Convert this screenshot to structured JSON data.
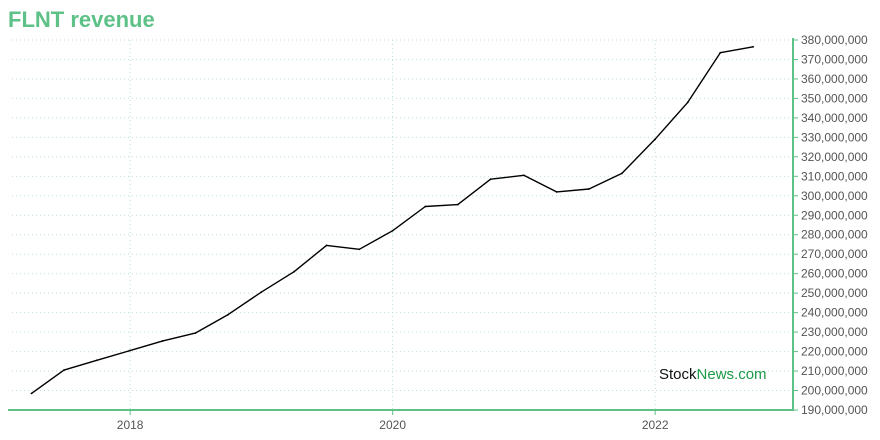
{
  "title": "FLNT revenue",
  "colors": {
    "accent": "#5ec187",
    "line": "#000000",
    "grid": "#b9e3c9",
    "brand_dark": "#111111",
    "brand_green": "#1e9a4a"
  },
  "watermark": {
    "part1": "Stock",
    "part2": "News",
    "part3": ".com"
  },
  "chart_data": {
    "type": "line",
    "title": "FLNT revenue",
    "xlabel": "",
    "ylabel": "",
    "x_ticks": [
      {
        "label": "2018",
        "value": 2018.0
      },
      {
        "label": "2020",
        "value": 2020.0
      },
      {
        "label": "2022",
        "value": 2022.0
      }
    ],
    "ylim": [
      190000000,
      380000000
    ],
    "xlim": [
      2017.1,
      2023.05
    ],
    "y_ticks": [
      "190,000,000",
      "200,000,000",
      "210,000,000",
      "220,000,000",
      "230,000,000",
      "240,000,000",
      "250,000,000",
      "260,000,000",
      "270,000,000",
      "280,000,000",
      "290,000,000",
      "300,000,000",
      "310,000,000",
      "320,000,000",
      "330,000,000",
      "340,000,000",
      "350,000,000",
      "360,000,000",
      "370,000,000",
      "380,000,000"
    ],
    "y_tick_values": [
      190000000,
      200000000,
      210000000,
      220000000,
      230000000,
      240000000,
      250000000,
      260000000,
      270000000,
      280000000,
      290000000,
      300000000,
      310000000,
      320000000,
      330000000,
      340000000,
      350000000,
      360000000,
      370000000,
      380000000
    ],
    "grid": true,
    "series": [
      {
        "x": [
          "2017-03-31",
          "2017-06-30",
          "2017-09-30",
          "2017-12-31",
          "2018-03-31",
          "2018-06-30",
          "2018-09-30",
          "2018-12-31",
          "2019-03-31",
          "2019-06-30",
          "2019-09-30",
          "2019-12-31",
          "2020-03-31",
          "2020-06-30",
          "2020-09-30",
          "2020-12-31",
          "2021-03-31",
          "2021-06-30",
          "2021-09-30",
          "2021-12-31",
          "2022-03-31",
          "2022-06-30",
          "2022-09-30"
        ],
        "values": [
          198500000,
          210500000,
          215500000,
          220500000,
          225500000,
          229500000,
          239000000,
          250500000,
          261000000,
          274500000,
          272500000,
          282000000,
          294500000,
          295500000,
          308500000,
          310500000,
          302000000,
          303500000,
          311500000,
          329000000,
          348000000,
          373500000,
          376500000
        ]
      }
    ]
  }
}
